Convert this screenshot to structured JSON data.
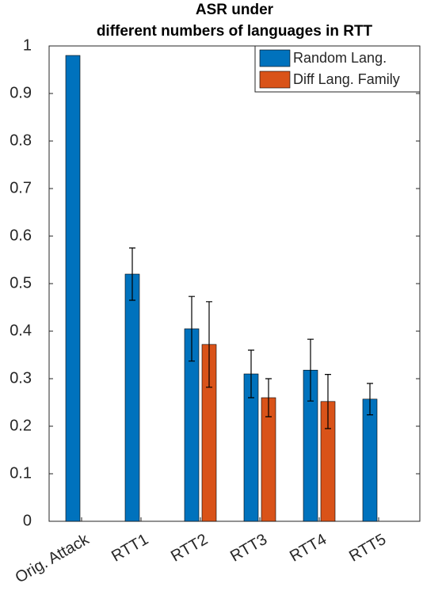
{
  "chart_data": {
    "type": "bar",
    "title": [
      "ASR under",
      "different numbers of languages in RTT"
    ],
    "categories": [
      "Orig. Attack",
      "RTT1",
      "RTT2",
      "RTT3",
      "RTT4",
      "RTT5"
    ],
    "series": [
      {
        "name": "Random Lang.",
        "color": "#0072bd",
        "values": [
          0.98,
          0.52,
          0.405,
          0.31,
          0.318,
          0.257
        ],
        "errors": [
          null,
          0.055,
          0.068,
          0.05,
          0.065,
          0.033
        ]
      },
      {
        "name": "Diff Lang. Family",
        "color": "#d95319",
        "values": [
          null,
          null,
          0.372,
          0.26,
          0.252,
          null
        ],
        "errors": [
          null,
          null,
          0.09,
          0.04,
          0.057,
          null
        ]
      }
    ],
    "ylim": [
      0,
      1
    ],
    "yticks": [
      0,
      0.1,
      0.2,
      0.3,
      0.4,
      0.5,
      0.6,
      0.7,
      0.8,
      0.9,
      1
    ],
    "legend": "upper right"
  }
}
